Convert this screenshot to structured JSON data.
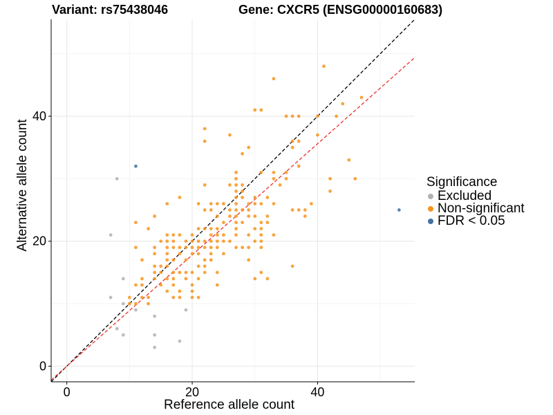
{
  "title_left": "Variant: rs75438046",
  "title_right": "Gene: CXCR5 (ENSG00000160683)",
  "chart_data": {
    "type": "scatter",
    "xlabel": "Reference allele count",
    "ylabel": "Alternative allele count",
    "xlim": [
      -2.5,
      55.5
    ],
    "ylim": [
      -2.5,
      55.5
    ],
    "x_ticks": [
      0,
      20,
      40
    ],
    "y_ticks": [
      0,
      20,
      40
    ],
    "grid": true,
    "legend": {
      "title": "Significance",
      "placement": "right",
      "entries": [
        {
          "label": "Excluded",
          "color": "#b2b2b2"
        },
        {
          "label": "Non-significant",
          "color": "#f7941d"
        },
        {
          "label": "FDR < 0.05",
          "color": "#4271a3"
        }
      ]
    },
    "reference_lines": [
      {
        "name": "y = x",
        "slope": 1.0,
        "intercept": 0,
        "color": "#000000",
        "dash": true
      },
      {
        "name": "fit",
        "slope": 0.89,
        "intercept": 0,
        "color": "#e8302a",
        "dash": true
      }
    ],
    "series": [
      {
        "name": "Excluded",
        "color": "#b2b2b2",
        "points": [
          [
            7,
            21
          ],
          [
            7,
            11
          ],
          [
            8,
            30
          ],
          [
            8,
            6
          ],
          [
            9,
            14
          ],
          [
            9,
            10
          ],
          [
            9,
            5
          ],
          [
            10,
            10
          ],
          [
            11,
            9
          ],
          [
            14,
            8
          ],
          [
            14,
            5
          ],
          [
            14,
            3
          ],
          [
            18,
            4
          ],
          [
            19,
            9
          ]
        ]
      },
      {
        "name": "Non-significant",
        "color": "#f7941d",
        "points": [
          [
            10,
            11
          ],
          [
            10,
            10
          ],
          [
            11,
            23
          ],
          [
            11,
            19
          ],
          [
            11,
            13
          ],
          [
            11,
            10
          ],
          [
            12,
            14
          ],
          [
            12,
            13
          ],
          [
            12,
            17
          ],
          [
            12,
            11
          ],
          [
            13,
            22
          ],
          [
            13,
            11
          ],
          [
            13,
            10
          ],
          [
            14,
            24
          ],
          [
            14,
            19
          ],
          [
            14,
            18
          ],
          [
            14,
            16
          ],
          [
            14,
            15
          ],
          [
            14,
            14
          ],
          [
            15,
            20
          ],
          [
            15,
            16
          ],
          [
            15,
            15
          ],
          [
            15,
            13
          ],
          [
            16,
            26
          ],
          [
            16,
            21
          ],
          [
            16,
            20
          ],
          [
            16,
            19
          ],
          [
            16,
            18
          ],
          [
            16,
            17
          ],
          [
            16,
            16
          ],
          [
            16,
            14
          ],
          [
            16,
            12
          ],
          [
            17,
            21
          ],
          [
            17,
            20
          ],
          [
            17,
            19
          ],
          [
            17,
            17
          ],
          [
            17,
            15
          ],
          [
            17,
            14
          ],
          [
            17,
            13
          ],
          [
            17,
            11
          ],
          [
            18,
            27
          ],
          [
            18,
            21
          ],
          [
            18,
            19
          ],
          [
            18,
            18
          ],
          [
            18,
            15
          ],
          [
            18,
            12
          ],
          [
            18,
            11
          ],
          [
            19,
            20
          ],
          [
            19,
            19
          ],
          [
            19,
            17
          ],
          [
            19,
            15
          ],
          [
            19,
            14
          ],
          [
            20,
            21
          ],
          [
            20,
            20
          ],
          [
            20,
            19
          ],
          [
            20,
            18
          ],
          [
            20,
            15
          ],
          [
            20,
            13
          ],
          [
            20,
            12
          ],
          [
            20,
            11
          ],
          [
            21,
            26
          ],
          [
            21,
            22
          ],
          [
            21,
            20
          ],
          [
            21,
            19
          ],
          [
            21,
            18
          ],
          [
            21,
            16
          ],
          [
            21,
            14
          ],
          [
            21,
            11
          ],
          [
            22,
            38
          ],
          [
            22,
            36
          ],
          [
            22,
            29
          ],
          [
            22,
            25
          ],
          [
            22,
            22
          ],
          [
            22,
            20
          ],
          [
            22,
            19
          ],
          [
            22,
            17
          ],
          [
            22,
            16
          ],
          [
            22,
            15
          ],
          [
            23,
            26
          ],
          [
            23,
            25
          ],
          [
            23,
            22
          ],
          [
            23,
            21
          ],
          [
            23,
            20
          ],
          [
            23,
            19
          ],
          [
            23,
            18
          ],
          [
            23,
            17
          ],
          [
            24,
            26
          ],
          [
            24,
            24
          ],
          [
            24,
            22
          ],
          [
            24,
            21
          ],
          [
            24,
            20
          ],
          [
            24,
            19
          ],
          [
            24,
            15
          ],
          [
            24,
            13
          ],
          [
            25,
            26
          ],
          [
            25,
            23
          ],
          [
            25,
            21
          ],
          [
            25,
            20
          ],
          [
            25,
            18
          ],
          [
            26,
            37
          ],
          [
            26,
            29
          ],
          [
            26,
            25
          ],
          [
            26,
            24
          ],
          [
            26,
            20
          ],
          [
            27,
            31
          ],
          [
            27,
            30
          ],
          [
            27,
            29
          ],
          [
            27,
            28
          ],
          [
            27,
            27
          ],
          [
            27,
            26
          ],
          [
            27,
            25
          ],
          [
            27,
            24
          ],
          [
            27,
            23
          ],
          [
            27,
            22
          ],
          [
            27,
            21
          ],
          [
            27,
            19
          ],
          [
            28,
            34
          ],
          [
            28,
            29
          ],
          [
            28,
            28
          ],
          [
            28,
            27
          ],
          [
            28,
            25
          ],
          [
            28,
            23
          ],
          [
            28,
            19
          ],
          [
            29,
            35
          ],
          [
            29,
            26
          ],
          [
            29,
            25
          ],
          [
            29,
            24
          ],
          [
            29,
            21
          ],
          [
            29,
            19
          ],
          [
            29,
            17
          ],
          [
            30,
            41
          ],
          [
            30,
            27
          ],
          [
            30,
            26
          ],
          [
            30,
            24
          ],
          [
            30,
            22
          ],
          [
            30,
            20
          ],
          [
            30,
            14
          ],
          [
            31,
            41
          ],
          [
            31,
            31
          ],
          [
            31,
            26
          ],
          [
            31,
            23
          ],
          [
            31,
            22
          ],
          [
            31,
            21
          ],
          [
            31,
            20
          ],
          [
            31,
            19
          ],
          [
            31,
            15
          ],
          [
            32,
            27
          ],
          [
            32,
            24
          ],
          [
            32,
            23
          ],
          [
            32,
            14
          ],
          [
            33,
            46
          ],
          [
            33,
            31
          ],
          [
            33,
            30
          ],
          [
            33,
            26
          ],
          [
            33,
            21
          ],
          [
            34,
            29
          ],
          [
            35,
            40
          ],
          [
            35,
            31
          ],
          [
            35,
            30
          ],
          [
            36,
            40
          ],
          [
            36,
            36
          ],
          [
            36,
            35
          ],
          [
            36,
            25
          ],
          [
            36,
            16
          ],
          [
            37,
            40
          ],
          [
            37,
            36
          ],
          [
            37,
            32
          ],
          [
            37,
            25
          ],
          [
            38,
            25
          ],
          [
            38,
            24
          ],
          [
            39,
            26
          ],
          [
            40,
            40
          ],
          [
            40,
            37
          ],
          [
            41,
            48
          ],
          [
            42,
            30
          ],
          [
            42,
            28
          ],
          [
            43,
            40
          ],
          [
            44,
            42
          ],
          [
            45,
            33
          ],
          [
            46,
            30
          ],
          [
            47,
            43
          ]
        ]
      },
      {
        "name": "FDR < 0.05",
        "color": "#4271a3",
        "points": [
          [
            11,
            32
          ],
          [
            53,
            25
          ]
        ]
      }
    ]
  }
}
